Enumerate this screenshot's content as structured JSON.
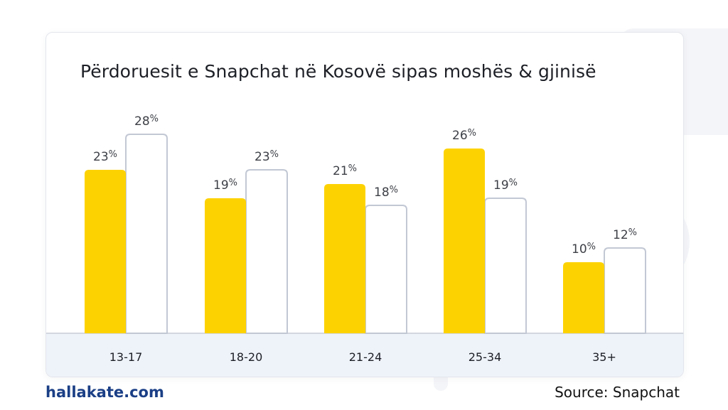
{
  "chart_data": {
    "type": "bar",
    "title": "Përdoruesit e Snapchat në Kosovë sipas moshës & gjinisë",
    "categories": [
      "13-17",
      "18-20",
      "21-24",
      "25-34",
      "35+"
    ],
    "series": [
      {
        "values": [
          23,
          19,
          21,
          26,
          10
        ],
        "color": "#FDD201"
      },
      {
        "values": [
          28,
          23,
          18,
          19,
          12
        ],
        "color": "#FFFFFF"
      }
    ],
    "value_suffix": "%",
    "xlabel": "",
    "ylabel": "",
    "ylim": [
      0,
      34
    ],
    "grid": false,
    "legend": "none"
  },
  "footer": {
    "brand": "hallakate.com",
    "source": "Source: Snapchat"
  },
  "colors": {
    "accent": "#FDD201",
    "outline": "#c2c8d4",
    "axis_band": "#eef2f9",
    "brand": "#1b3f86"
  }
}
